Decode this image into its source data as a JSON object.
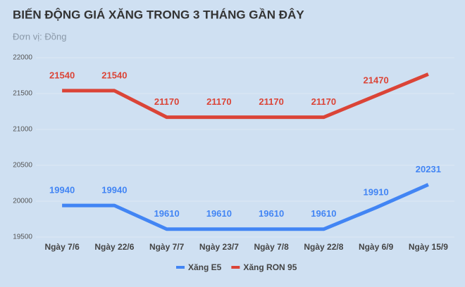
{
  "chart_data": {
    "type": "line",
    "title": "BIẾN ĐỘNG GIÁ XĂNG TRONG 3 THÁNG GẦN ĐÂY",
    "subtitle": "Đơn vị: Đồng",
    "categories": [
      "Ngày 7/6",
      "Ngày 22/6",
      "Ngày 7/7",
      "Ngày 23/7",
      "Ngày 7/8",
      "Ngày 22/8",
      "Ngày 6/9",
      "Ngày 15/9"
    ],
    "series": [
      {
        "name": "Xăng E5",
        "color": "#4285f4",
        "values": [
          19940,
          19940,
          19610,
          19610,
          19610,
          19610,
          19910,
          20231
        ],
        "value_labels": [
          19940,
          19940,
          19610,
          19610,
          19610,
          19610,
          19910,
          20231
        ]
      },
      {
        "name": "Xăng RON 95",
        "color": "#db4437",
        "values": [
          21540,
          21540,
          21170,
          21170,
          21170,
          21170,
          21470,
          21770
        ],
        "value_labels": [
          21540,
          21540,
          21170,
          21170,
          21170,
          21170,
          21470,
          null
        ]
      }
    ],
    "ylim": [
      19500,
      22000
    ],
    "yticks": [
      19500,
      20000,
      20500,
      21000,
      21500,
      22000
    ],
    "grid": true,
    "legend": "bottom"
  }
}
